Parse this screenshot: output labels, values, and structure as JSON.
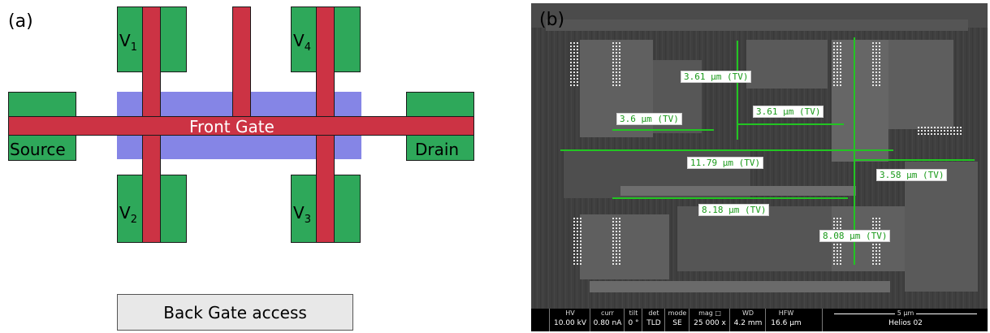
{
  "panel_a": {
    "label": "(a)",
    "pads": {
      "v1": "V",
      "v1_sub": "1",
      "v2": "V",
      "v2_sub": "2",
      "v3": "V",
      "v3_sub": "3",
      "v4": "V",
      "v4_sub": "4",
      "source": "Source",
      "drain": "Drain"
    },
    "front_gate_label": "Front Gate",
    "back_gate_label": "Back Gate access",
    "colors": {
      "pad": "#2ea85a",
      "gate": "#cc3344",
      "channel": "#8585e6",
      "back_gate": "#e8e8e8"
    }
  },
  "panel_b": {
    "label": "(b)",
    "measurements": [
      "3.61 µm (TV)",
      "3.61 µm (TV)",
      "3.6 µm (TV)",
      "11.79 µm (TV)",
      "3.58 µm (TV)",
      "8.18 µm (TV)",
      "8.08 µm (TV)"
    ],
    "info_bar": {
      "hv_label": "HV",
      "hv_value": "10.00 kV",
      "curr_label": "curr",
      "curr_value": "0.80 nA",
      "tilt_label": "tilt",
      "tilt_value": "0 °",
      "det_label": "det",
      "det_value": "TLD",
      "mode_label": "mode",
      "mode_value": "SE",
      "mag_label": "mag □",
      "mag_value": "25 000 x",
      "wd_label": "WD",
      "wd_value": "4.2 mm",
      "hfw_label": "HFW",
      "hfw_value": "16.6 µm",
      "scale_label": "5 µm",
      "instrument": "Helios 02"
    },
    "colors": {
      "measure_line": "#22c522",
      "measure_text": "#1a9a1a"
    }
  }
}
